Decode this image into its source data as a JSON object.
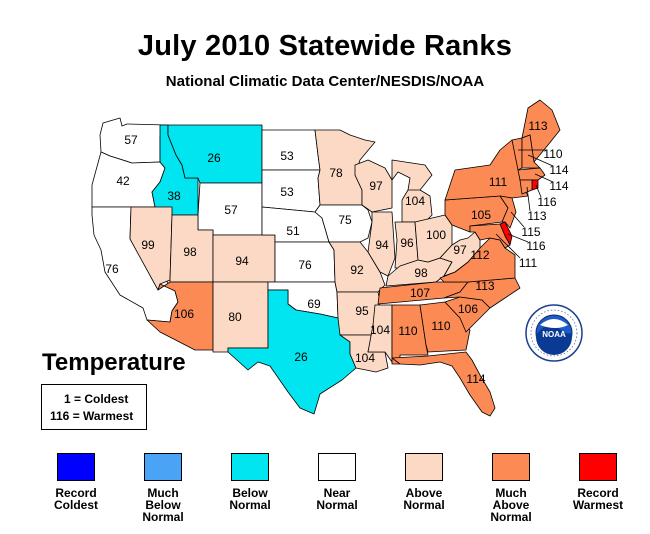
{
  "title": "July 2010 Statewide Ranks",
  "subtitle": "National Climatic Data Center/NESDIS/NOAA",
  "variable_label": "Temperature",
  "key": {
    "line1": "1 = Coldest",
    "line2": "116 = Warmest"
  },
  "logo_text": "NOAA",
  "colors": {
    "record_coldest": "#0000ff",
    "much_below": "#4aa3f5",
    "below": "#00e5f0",
    "near": "#ffffff",
    "above": "#fcd9c4",
    "much_above": "#fb8a55",
    "record_warmest": "#ff0000"
  },
  "legend": [
    {
      "id": "record_coldest",
      "label": "Record Coldest"
    },
    {
      "id": "much_below",
      "label": "Much Below Normal"
    },
    {
      "id": "below",
      "label": "Below Normal"
    },
    {
      "id": "near",
      "label": "Near Normal"
    },
    {
      "id": "above",
      "label": "Above Normal"
    },
    {
      "id": "much_above",
      "label": "Much Above Normal"
    },
    {
      "id": "record_warmest",
      "label": "Record Warmest"
    }
  ],
  "states": [
    {
      "code": "WA",
      "rank": "57",
      "category": "near"
    },
    {
      "code": "OR",
      "rank": "42",
      "category": "near"
    },
    {
      "code": "CA",
      "rank": "76",
      "category": "near"
    },
    {
      "code": "ID",
      "rank": "38",
      "category": "below"
    },
    {
      "code": "NV",
      "rank": "99",
      "category": "above"
    },
    {
      "code": "MT",
      "rank": "26",
      "category": "below"
    },
    {
      "code": "WY",
      "rank": "57",
      "category": "near"
    },
    {
      "code": "UT",
      "rank": "98",
      "category": "above"
    },
    {
      "code": "AZ",
      "rank": "106",
      "category": "much_above"
    },
    {
      "code": "CO",
      "rank": "94",
      "category": "above"
    },
    {
      "code": "NM",
      "rank": "80",
      "category": "above"
    },
    {
      "code": "ND",
      "rank": "53",
      "category": "near"
    },
    {
      "code": "SD",
      "rank": "53",
      "category": "near"
    },
    {
      "code": "NE",
      "rank": "51",
      "category": "near"
    },
    {
      "code": "KS",
      "rank": "76",
      "category": "near"
    },
    {
      "code": "OK",
      "rank": "69",
      "category": "near"
    },
    {
      "code": "TX",
      "rank": "26",
      "category": "below"
    },
    {
      "code": "MN",
      "rank": "78",
      "category": "above"
    },
    {
      "code": "IA",
      "rank": "75",
      "category": "near"
    },
    {
      "code": "MO",
      "rank": "92",
      "category": "above"
    },
    {
      "code": "AR",
      "rank": "95",
      "category": "above"
    },
    {
      "code": "LA",
      "rank": "104",
      "category": "above"
    },
    {
      "code": "WI",
      "rank": "97",
      "category": "above"
    },
    {
      "code": "IL",
      "rank": "94",
      "category": "above"
    },
    {
      "code": "MS",
      "rank": "104",
      "category": "above"
    },
    {
      "code": "MI",
      "rank": "104",
      "category": "above"
    },
    {
      "code": "IN",
      "rank": "96",
      "category": "above"
    },
    {
      "code": "KY",
      "rank": "98",
      "category": "above"
    },
    {
      "code": "TN",
      "rank": "107",
      "category": "much_above"
    },
    {
      "code": "AL",
      "rank": "110",
      "category": "much_above"
    },
    {
      "code": "OH",
      "rank": "100",
      "category": "above"
    },
    {
      "code": "GA",
      "rank": "110",
      "category": "much_above"
    },
    {
      "code": "FL",
      "rank": "114",
      "category": "much_above"
    },
    {
      "code": "SC",
      "rank": "106",
      "category": "much_above"
    },
    {
      "code": "NC",
      "rank": "113",
      "category": "much_above"
    },
    {
      "code": "VA",
      "rank": "112",
      "category": "much_above"
    },
    {
      "code": "WV",
      "rank": "97",
      "category": "above"
    },
    {
      "code": "PA",
      "rank": "105",
      "category": "much_above"
    },
    {
      "code": "NY",
      "rank": "111",
      "category": "much_above"
    },
    {
      "code": "ME",
      "rank": "113",
      "category": "much_above"
    },
    {
      "code": "VT",
      "rank": "110",
      "category": "much_above"
    },
    {
      "code": "NH",
      "rank": "114",
      "category": "much_above"
    },
    {
      "code": "MA",
      "rank": "114",
      "category": "much_above"
    },
    {
      "code": "RI",
      "rank": "116",
      "category": "record_warmest"
    },
    {
      "code": "CT",
      "rank": "113",
      "category": "much_above"
    },
    {
      "code": "NJ",
      "rank": "115",
      "category": "much_above"
    },
    {
      "code": "DE",
      "rank": "116",
      "category": "record_warmest"
    },
    {
      "code": "MD",
      "rank": "111",
      "category": "much_above"
    }
  ]
}
